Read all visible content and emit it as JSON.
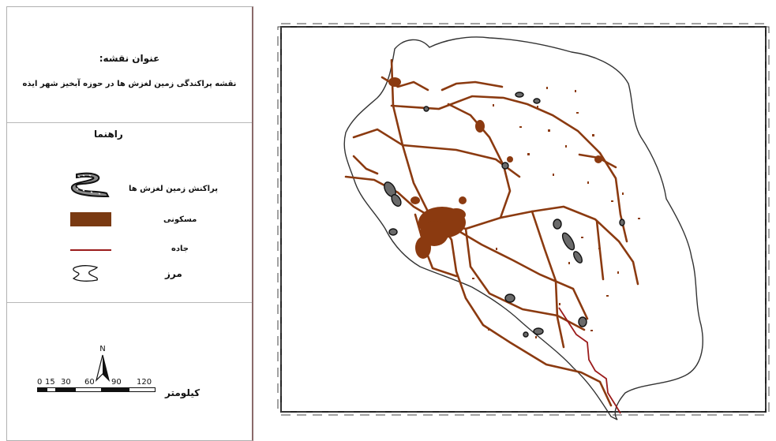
{
  "title": {
    "heading": "عنوان نقشه:",
    "text": "نقشه پراکندگی زمین لغزش ها در حوزه آبخیز شهر ایذه"
  },
  "legend": {
    "heading": "راهنما",
    "items": [
      {
        "label": "پراکنش زمین لغزش ها",
        "icon": "landslide-symbol-icon",
        "color": "#6d6d6d"
      },
      {
        "label": "مسکونی",
        "icon": "residential-fill-icon",
        "color": "#7a3a12"
      },
      {
        "label": "جاده",
        "icon": "road-line-icon",
        "color": "#9b1b1b"
      },
      {
        "label": "مرز",
        "icon": "boundary-outline-icon",
        "color": "#222222"
      }
    ]
  },
  "north_arrow": {
    "label": "N"
  },
  "scale_bar": {
    "ticks": [
      "0",
      "15",
      "30",
      "60",
      "90",
      "120"
    ],
    "unit": "کیلومتر"
  },
  "map_colors": {
    "road": "#9b1b1b",
    "residential": "#8b3a10",
    "landslide": "#555555",
    "boundary": "#333333"
  }
}
